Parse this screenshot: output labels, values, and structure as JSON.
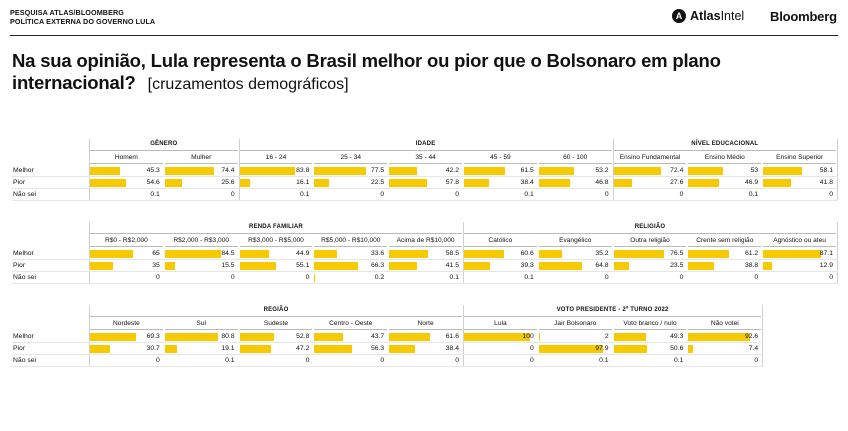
{
  "header": {
    "line1": "PESQUISA ATLAS/BLOOMBERG",
    "line2": "POLÍTICA EXTERNA DO GOVERNO LULA",
    "atlas_bold": "Atlas",
    "atlas_light": "Intel",
    "bloomberg": "Bloomberg"
  },
  "title": {
    "main": "Na sua opinião, Lula representa o Brasil melhor ou pior que o Bolsonaro em plano internacional?",
    "sub": "[cruzamentos demográficos]"
  },
  "colors": {
    "bar": "#f6c900"
  },
  "chart_data": {
    "type": "table",
    "rows": [
      "Melhor",
      "Pior",
      "Não sei"
    ],
    "panels": [
      {
        "groups": [
          {
            "name": "GÊNERO",
            "columns": [
              "Homem",
              "Mulher"
            ]
          },
          {
            "name": "IDADE",
            "columns": [
              "16 - 24",
              "25 - 34",
              "35 - 44",
              "45 - 59",
              "60 - 100"
            ]
          },
          {
            "name": "NÍVEL EDUCACIONAL",
            "columns": [
              "Ensino Fundamental",
              "Ensino Médio",
              "Ensino Superior"
            ]
          }
        ],
        "values": [
          [
            "45.3",
            "74.4",
            "83.8",
            "77.5",
            "42.2",
            "61.5",
            "53.2",
            "72.4",
            "53",
            "58.1"
          ],
          [
            "54.6",
            "25.6",
            "16.1",
            "22.5",
            "57.8",
            "38.4",
            "46.8",
            "27.6",
            "46.9",
            "41.8"
          ],
          [
            "0.1",
            "0",
            "0.1",
            "0",
            "0",
            "0.1",
            "0",
            "0",
            "0.1",
            "0"
          ]
        ]
      },
      {
        "groups": [
          {
            "name": "RENDA FAMILIAR",
            "columns": [
              "R$0 - R$2,000",
              "R$2,000 - R$3,000",
              "R$3,000 - R$5,000",
              "R$5,000 - R$10,000",
              "Acima de R$10,000"
            ]
          },
          {
            "name": "RELIGIÃO",
            "columns": [
              "Católico",
              "Evangélico",
              "Outra religião",
              "Crente sem religião",
              "Agnóstico ou ateu"
            ]
          }
        ],
        "values": [
          [
            "65",
            "84.5",
            "44.9",
            "33.6",
            "58.5",
            "60.6",
            "35.2",
            "76.5",
            "61.2",
            "87.1"
          ],
          [
            "35",
            "15.5",
            "55.1",
            "66.3",
            "41.5",
            "39.3",
            "64.8",
            "23.5",
            "38.8",
            "12.9"
          ],
          [
            "0",
            "0",
            "0",
            "0.2",
            "0.1",
            "0.1",
            "0",
            "0",
            "0",
            "0"
          ]
        ]
      },
      {
        "groups": [
          {
            "name": "REGIÃO",
            "columns": [
              "Nordeste",
              "Sul",
              "Sudeste",
              "Centro - Oeste",
              "Norte"
            ]
          },
          {
            "name": "VOTO PRESIDENTE - 2º TURNO 2022",
            "columns": [
              "Lula",
              "Jair Bolsonaro",
              "Voto branco / nulo",
              "Não votei"
            ]
          }
        ],
        "values": [
          [
            "69.3",
            "80.8",
            "52.8",
            "43.7",
            "61.6",
            "100",
            "2",
            "49.3",
            "92.6"
          ],
          [
            "30.7",
            "19.1",
            "47.2",
            "56.3",
            "38.4",
            "0",
            "97.9",
            "50.6",
            "7.4"
          ],
          [
            "0",
            "0.1",
            "0",
            "0",
            "0",
            "0",
            "0.1",
            "0.1",
            "0"
          ]
        ]
      }
    ]
  }
}
